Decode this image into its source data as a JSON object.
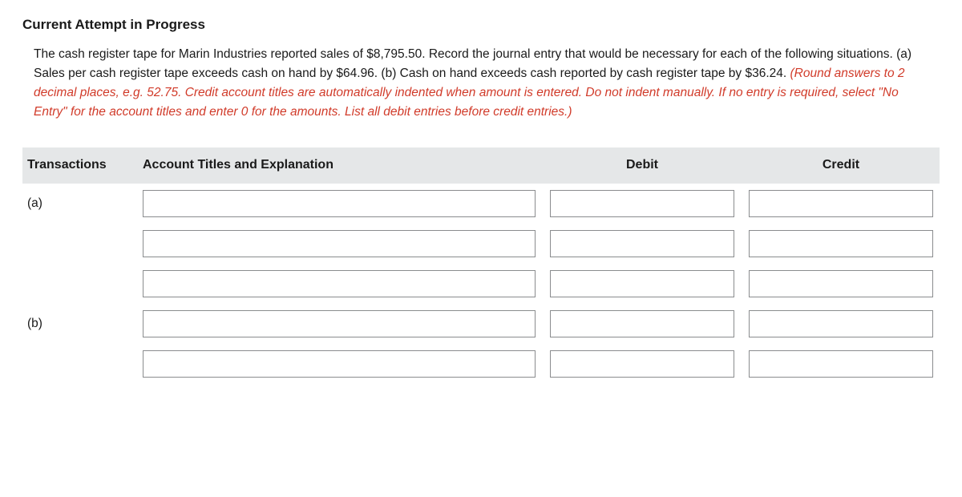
{
  "heading": "Current Attempt in Progress",
  "problem_text_part1": "The cash register tape for Marin Industries reported sales of $8,795.50. Record the journal entry that would be necessary for each of the following situations. (a) Sales per cash register tape exceeds cash on hand by $64.96. (b) Cash on hand exceeds cash reported by cash register tape by $36.24. ",
  "instruction_italic": "(Round answers to 2 decimal places, e.g. 52.75. Credit account titles are automatically indented when amount is entered. Do not indent manually. If no entry is required, select \"No Entry\" for the account titles and enter 0 for the amounts. List all debit entries before credit entries.)",
  "columns": {
    "transactions": "Transactions",
    "account": "Account Titles and Explanation",
    "debit": "Debit",
    "credit": "Credit"
  },
  "rows": [
    {
      "label": "(a)",
      "account": "",
      "debit": "",
      "credit": ""
    },
    {
      "label": "",
      "account": "",
      "debit": "",
      "credit": ""
    },
    {
      "label": "",
      "account": "",
      "debit": "",
      "credit": ""
    },
    {
      "label": "(b)",
      "account": "",
      "debit": "",
      "credit": ""
    },
    {
      "label": "",
      "account": "",
      "debit": "",
      "credit": ""
    }
  ],
  "colors": {
    "header_bg": "#e5e7e8",
    "instruction": "#d13b2a",
    "input_border": "#8a8c8e",
    "text": "#1a1a1a",
    "page_bg": "#ffffff"
  }
}
